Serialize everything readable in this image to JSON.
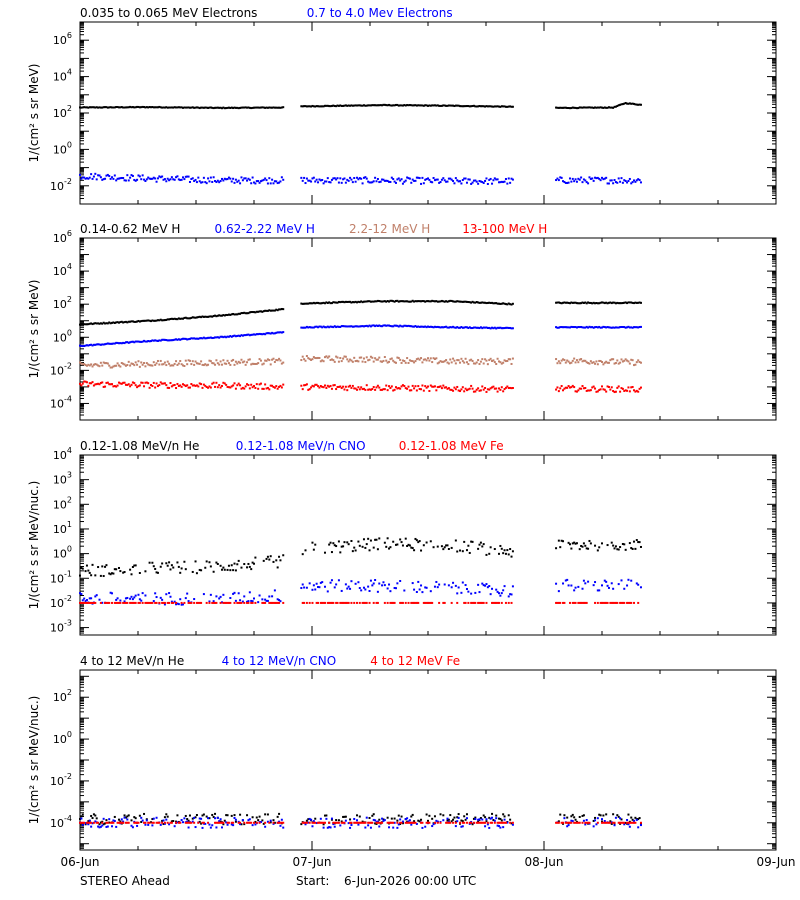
{
  "footer": {
    "spacecraft": "STEREO Ahead",
    "start_label": "Start:",
    "start_value": "6-Jun-2026 00:00 UTC"
  },
  "x_axis": {
    "ticks": [
      "06-Jun",
      "07-Jun",
      "08-Jun",
      "09-Jun"
    ],
    "range_days": [
      0,
      3
    ]
  },
  "colors": {
    "black": "#000000",
    "blue": "#0000ff",
    "tan": "#c0806a",
    "red": "#ff0000"
  },
  "chart_data": [
    {
      "type": "scatter",
      "ylabel": "1/(cm² s sr MeV)",
      "yscale": "log",
      "ylim": [
        0.001,
        10000000
      ],
      "ytick_exponents": [
        -2,
        0,
        2,
        4,
        6
      ],
      "gaps_days": [
        [
          0.88,
          0.95
        ],
        [
          1.87,
          2.05
        ]
      ],
      "data_end_day": 2.42,
      "series": [
        {
          "name": "0.035 to 0.065 MeV Electrons",
          "color": "#000000",
          "x": [
            0,
            0.3,
            0.6,
            0.88,
            0.95,
            1.3,
            1.6,
            1.87,
            2.05,
            2.3,
            2.35,
            2.42
          ],
          "y": [
            200,
            210,
            190,
            200,
            230,
            270,
            250,
            220,
            190,
            200,
            350,
            280
          ]
        },
        {
          "name": "0.7 to 4.0 Mev Electrons",
          "color": "#0000ff",
          "x": [
            0,
            0.3,
            0.6,
            0.88,
            0.95,
            1.3,
            1.6,
            1.87,
            2.05,
            2.42
          ],
          "y": [
            0.035,
            0.025,
            0.02,
            0.02,
            0.02,
            0.02,
            0.018,
            0.018,
            0.02,
            0.02
          ]
        }
      ]
    },
    {
      "type": "scatter",
      "ylabel": "1/(cm² s sr MeV)",
      "yscale": "log",
      "ylim": [
        1e-05,
        1000000
      ],
      "ytick_exponents": [
        -4,
        -2,
        0,
        2,
        4,
        6
      ],
      "gaps_days": [
        [
          0.88,
          0.95
        ],
        [
          1.87,
          2.05
        ]
      ],
      "data_end_day": 2.42,
      "series": [
        {
          "name": "0.14-0.62 MeV H",
          "color": "#000000",
          "x": [
            0,
            0.3,
            0.6,
            0.88,
            0.95,
            1.3,
            1.6,
            1.87,
            2.05,
            2.42
          ],
          "y": [
            6,
            10,
            20,
            50,
            110,
            150,
            150,
            100,
            120,
            120
          ]
        },
        {
          "name": "0.62-2.22 MeV H",
          "color": "#0000ff",
          "x": [
            0,
            0.3,
            0.6,
            0.88,
            0.95,
            1.3,
            1.6,
            1.87,
            2.05,
            2.42
          ],
          "y": [
            0.3,
            0.6,
            1,
            2,
            4,
            5,
            4,
            3.5,
            4,
            4
          ]
        },
        {
          "name": "2.2-12 MeV H",
          "color": "#c0806a",
          "x": [
            0,
            0.3,
            0.6,
            0.88,
            0.95,
            1.3,
            1.6,
            1.87,
            2.05,
            2.42
          ],
          "y": [
            0.02,
            0.025,
            0.03,
            0.035,
            0.05,
            0.045,
            0.035,
            0.035,
            0.04,
            0.03
          ]
        },
        {
          "name": "13-100 MeV H",
          "color": "#ff0000",
          "x": [
            0,
            0.3,
            0.6,
            0.88,
            0.95,
            1.3,
            1.6,
            1.87,
            2.05,
            2.42
          ],
          "y": [
            0.0015,
            0.0013,
            0.0012,
            0.001,
            0.001,
            0.0009,
            0.0008,
            0.0007,
            0.0008,
            0.0007
          ]
        }
      ]
    },
    {
      "type": "scatter",
      "ylabel": "1/(cm² s sr MeV/nuc.)",
      "yscale": "log",
      "ylim": [
        0.0005,
        10000
      ],
      "ytick_exponents": [
        -3,
        -2,
        -1,
        0,
        1,
        2,
        3,
        4
      ],
      "gaps_days": [
        [
          0.88,
          0.95
        ],
        [
          1.87,
          2.05
        ]
      ],
      "data_end_day": 2.42,
      "series": [
        {
          "name": "0.12-1.08 MeV/n He",
          "color": "#000000",
          "x": [
            0,
            0.3,
            0.6,
            0.88,
            0.95,
            1.3,
            1.6,
            1.87,
            2.05,
            2.42
          ],
          "y": [
            0.2,
            0.25,
            0.3,
            0.5,
            1.5,
            2.5,
            2.2,
            1.2,
            2.2,
            2.5
          ]
        },
        {
          "name": "0.12-1.08 MeV/n CNO",
          "color": "#0000ff",
          "x": [
            0,
            0.3,
            0.6,
            0.88,
            0.95,
            1.3,
            1.6,
            1.87,
            2.05,
            2.42
          ],
          "y": [
            0.015,
            0.015,
            0.015,
            0.02,
            0.05,
            0.05,
            0.04,
            0.03,
            0.05,
            0.05
          ]
        },
        {
          "name": "0.12-1.08 MeV Fe",
          "color": "#ff0000",
          "x": [
            0,
            0.3,
            0.6,
            0.88,
            0.95,
            1.3,
            1.6,
            1.87,
            2.05,
            2.42
          ],
          "y": [
            0.01,
            0.01,
            0.01,
            0.01,
            0.01,
            0.01,
            0.01,
            0.01,
            0.01,
            0.01
          ]
        }
      ]
    },
    {
      "type": "scatter",
      "ylabel": "1/(cm² s sr MeV/nuc.)",
      "yscale": "log",
      "ylim": [
        5e-06,
        2000
      ],
      "ytick_exponents": [
        -4,
        -2,
        0,
        2
      ],
      "gaps_days": [
        [
          0.88,
          0.95
        ],
        [
          1.87,
          2.05
        ]
      ],
      "data_end_day": 2.42,
      "series": [
        {
          "name": "4 to 12 MeV/n He",
          "color": "#000000",
          "x": [
            0,
            0.5,
            0.88,
            0.95,
            1.5,
            1.87,
            2.05,
            2.42
          ],
          "y": [
            0.00015,
            0.00015,
            0.00015,
            0.00015,
            0.00015,
            0.00015,
            0.00015,
            0.00015
          ]
        },
        {
          "name": "4 to 12 MeV/n CNO",
          "color": "#0000ff",
          "x": [
            0,
            0.5,
            0.88,
            0.95,
            1.5,
            1.87,
            2.05,
            2.42
          ],
          "y": [
            0.0001,
            0.0001,
            0.0001,
            0.0001,
            0.0001,
            0.0001,
            0.0001,
            0.0001
          ]
        },
        {
          "name": "4 to 12 MeV Fe",
          "color": "#ff0000",
          "x": [
            0,
            0.5,
            0.88,
            0.95,
            1.5,
            1.87,
            2.05,
            2.42
          ],
          "y": [
            0.0001,
            0.0001,
            0.0001,
            0.0001,
            0.0001,
            0.0001,
            0.0001,
            0.0001
          ]
        }
      ]
    }
  ]
}
